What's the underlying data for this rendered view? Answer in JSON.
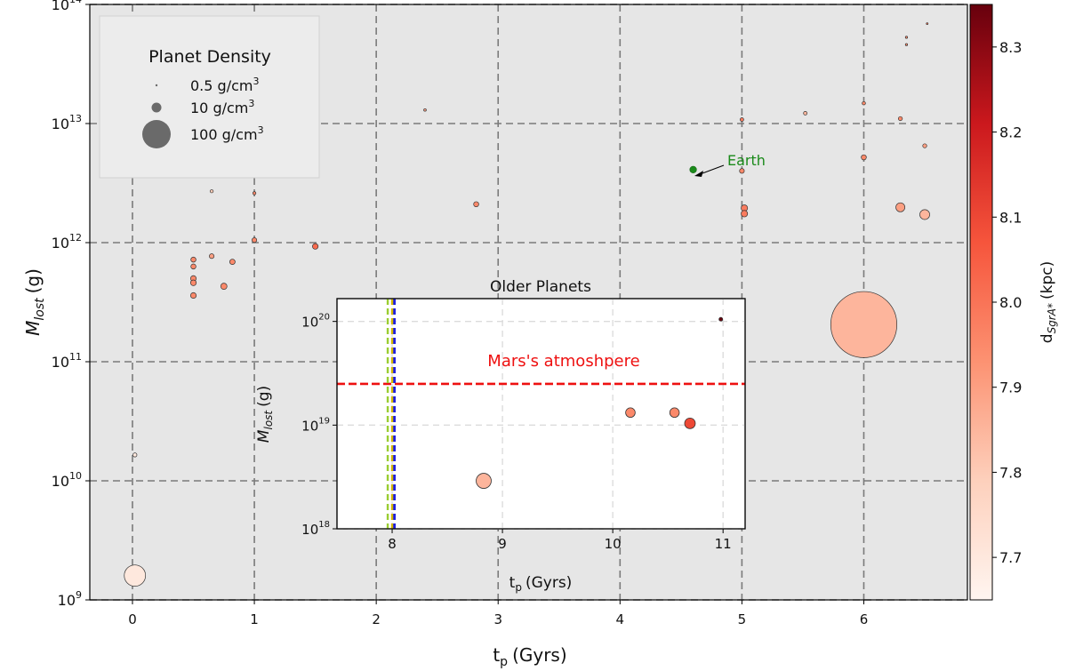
{
  "chart_data": [
    {
      "type": "scatter",
      "name": "main",
      "xlabel": "t",
      "xlabel_sub": "p",
      "xlabel_unit": "(Gyrs)",
      "ylabel": "M",
      "ylabel_sub": "lost",
      "ylabel_unit": "(g)",
      "yscale": "log",
      "xlim": [
        -0.35,
        6.85
      ],
      "ylim_log10": [
        9,
        14
      ],
      "xticks": [
        0,
        1,
        2,
        3,
        4,
        5,
        6
      ],
      "yticks_exp": [
        9,
        10,
        11,
        12,
        13,
        14
      ],
      "grid": true,
      "legend": {
        "title": "Planet Density",
        "placement": "top-left",
        "entries": [
          {
            "value": "0.5",
            "unit": "g/cm",
            "sup": "3",
            "density": 0.5
          },
          {
            "value": "10",
            "unit": "g/cm",
            "sup": "3",
            "density": 10
          },
          {
            "value": "100",
            "unit": "g/cm",
            "sup": "3",
            "density": 100
          }
        ]
      },
      "colorbar": {
        "label": "d",
        "label_sub": "SgrA*",
        "label_unit": "(kpc)",
        "min": 7.65,
        "max": 8.35,
        "ticks": [
          "7.7",
          "7.8",
          "7.9",
          "8.0",
          "8.1",
          "8.2",
          "8.3"
        ]
      },
      "annotation": {
        "text": "Earth",
        "x": 4.65,
        "y": 4100000000000.0,
        "color": "#1a8a1a"
      },
      "points": [
        {
          "x": 0.02,
          "y": 1600000000.0,
          "density": 14,
          "d": 7.7
        },
        {
          "x": 0.02,
          "y": 16500000000.0,
          "density": 0.5,
          "d": 7.7
        },
        {
          "x": 0.5,
          "y": 720000000000.0,
          "density": 0.8,
          "d": 7.95
        },
        {
          "x": 0.5,
          "y": 630000000000.0,
          "density": 0.8,
          "d": 7.95
        },
        {
          "x": 0.5,
          "y": 500000000000.0,
          "density": 1.0,
          "d": 7.95
        },
        {
          "x": 0.5,
          "y": 460000000000.0,
          "density": 1.0,
          "d": 7.95
        },
        {
          "x": 0.5,
          "y": 360000000000.0,
          "density": 1.0,
          "d": 7.95
        },
        {
          "x": 0.65,
          "y": 2700000000000.0,
          "density": 0.3,
          "d": 7.8
        },
        {
          "x": 0.65,
          "y": 770000000000.0,
          "density": 0.7,
          "d": 7.9
        },
        {
          "x": 0.75,
          "y": 430000000000.0,
          "density": 1.2,
          "d": 7.95
        },
        {
          "x": 0.82,
          "y": 690000000000.0,
          "density": 0.9,
          "d": 7.95
        },
        {
          "x": 1.0,
          "y": 2600000000000.0,
          "density": 0.3,
          "d": 7.95
        },
        {
          "x": 1.0,
          "y": 1050000000000.0,
          "density": 0.7,
          "d": 7.95
        },
        {
          "x": 1.5,
          "y": 930000000000.0,
          "density": 1.0,
          "d": 8.02
        },
        {
          "x": 2.4,
          "y": 13000000000000.0,
          "density": 0.2,
          "d": 7.9
        },
        {
          "x": 2.82,
          "y": 2100000000000.0,
          "density": 0.8,
          "d": 7.95
        },
        {
          "x": 5.0,
          "y": 10800000000000.0,
          "density": 0.4,
          "d": 7.98
        },
        {
          "x": 5.0,
          "y": 4000000000000.0,
          "density": 0.7,
          "d": 7.95
        },
        {
          "x": 5.02,
          "y": 1950000000000.0,
          "density": 1.3,
          "d": 7.98
        },
        {
          "x": 5.02,
          "y": 1750000000000.0,
          "density": 1.3,
          "d": 7.98
        },
        {
          "x": 5.52,
          "y": 12200000000000.0,
          "density": 0.4,
          "d": 7.85
        },
        {
          "x": 6.0,
          "y": 14800000000000.0,
          "density": 0.35,
          "d": 7.95
        },
        {
          "x": 6.0,
          "y": 5200000000000.0,
          "density": 0.8,
          "d": 7.95
        },
        {
          "x": 6.0,
          "y": 205000000000.0,
          "density": 135,
          "d": 7.85
        },
        {
          "x": 6.3,
          "y": 11000000000000.0,
          "density": 0.5,
          "d": 7.95
        },
        {
          "x": 6.3,
          "y": 1980000000000.0,
          "density": 2.5,
          "d": 7.9
        },
        {
          "x": 6.35,
          "y": 53000000000000.0,
          "density": 0.15,
          "d": 7.95
        },
        {
          "x": 6.35,
          "y": 46000000000000.0,
          "density": 0.15,
          "d": 7.95
        },
        {
          "x": 6.5,
          "y": 6500000000000.0,
          "density": 0.5,
          "d": 7.9
        },
        {
          "x": 6.5,
          "y": 1720000000000.0,
          "density": 3.0,
          "d": 7.85
        },
        {
          "x": 6.52,
          "y": 69000000000000.0,
          "density": 0.1,
          "d": 8.0
        }
      ],
      "earth_point": {
        "x": 4.6,
        "y": 4100000000000.0,
        "density": 1.0,
        "color": "#1a8a1a"
      }
    },
    {
      "type": "scatter",
      "name": "inset",
      "title": "Older Planets",
      "xlabel": "t",
      "xlabel_sub": "p",
      "xlabel_unit": "(Gyrs)",
      "ylabel": "M",
      "ylabel_sub": "lost",
      "ylabel_unit": "(g)",
      "yscale": "log",
      "xlim": [
        7.5,
        11.2
      ],
      "ylim_log10": [
        18,
        20.22
      ],
      "xticks": [
        8,
        9,
        10,
        11
      ],
      "yticks_exp": [
        18,
        19,
        20
      ],
      "grid": true,
      "hline": {
        "y": 2.5e+19,
        "label": "Mars's atmoshpere",
        "color": "#ee1111"
      },
      "vlines": [
        {
          "x": 7.96,
          "color": "#9acd32"
        },
        {
          "x": 8.02,
          "color": "#1f1fe0"
        },
        {
          "x": 8.0,
          "color": "#d4b800"
        }
      ],
      "points": [
        {
          "x": 8.83,
          "y": 2.9e+18,
          "density": 2.0,
          "d": 7.85
        },
        {
          "x": 10.16,
          "y": 1.32e+19,
          "density": 0.8,
          "d": 7.95
        },
        {
          "x": 10.56,
          "y": 1.32e+19,
          "density": 0.8,
          "d": 7.95
        },
        {
          "x": 10.7,
          "y": 1.04e+19,
          "density": 1.0,
          "d": 8.1
        },
        {
          "x": 10.98,
          "y": 1.05e+20,
          "density": 0.12,
          "d": 8.35
        }
      ]
    }
  ]
}
